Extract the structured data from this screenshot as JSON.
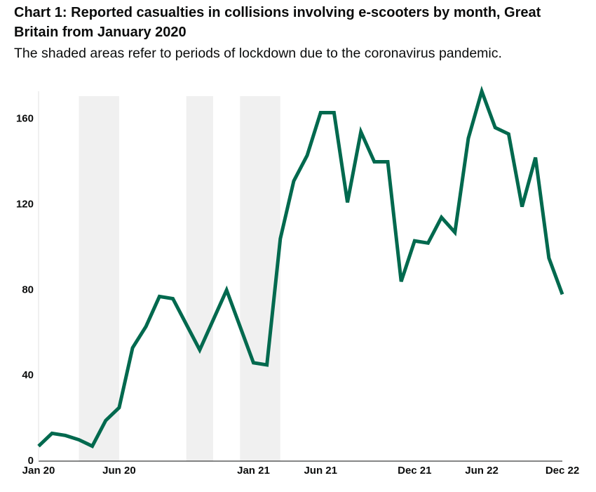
{
  "chart_data": {
    "type": "line",
    "title": "Chart 1: Reported casualties in collisions involving e-scooters by month, Great Britain from January 2020",
    "subtitle": "The shaded areas refer to periods of lockdown due to the coronavirus pandemic.",
    "categories": [
      "Jan 20",
      null,
      null,
      null,
      null,
      null,
      "Jun 20",
      null,
      null,
      null,
      null,
      null,
      null,
      null,
      null,
      null,
      "Jan 21",
      null,
      null,
      null,
      null,
      "Jun 21",
      null,
      null,
      null,
      null,
      null,
      null,
      "Dec 21",
      null,
      null,
      null,
      null,
      "Jun 22",
      null,
      null,
      null,
      null,
      null,
      "Dec 22"
    ],
    "series": [
      {
        "name": "Casualties",
        "color": "#00694e",
        "values": [
          7,
          13,
          12,
          10,
          7,
          19,
          25,
          53,
          63,
          77,
          76,
          64,
          52,
          66,
          80,
          63,
          46,
          45,
          104,
          131,
          143,
          163,
          163,
          121,
          154,
          140,
          140,
          84,
          103,
          102,
          114,
          107,
          151,
          173,
          156,
          153,
          119,
          142,
          95,
          78
        ]
      }
    ],
    "shaded_ranges": [
      [
        3,
        6
      ],
      [
        11,
        13
      ],
      [
        15,
        18
      ]
    ],
    "shade_color": "#f0f0f0",
    "ylim": [
      0,
      173
    ],
    "yticks": [
      0,
      40,
      80,
      120,
      160
    ],
    "grid": false
  }
}
